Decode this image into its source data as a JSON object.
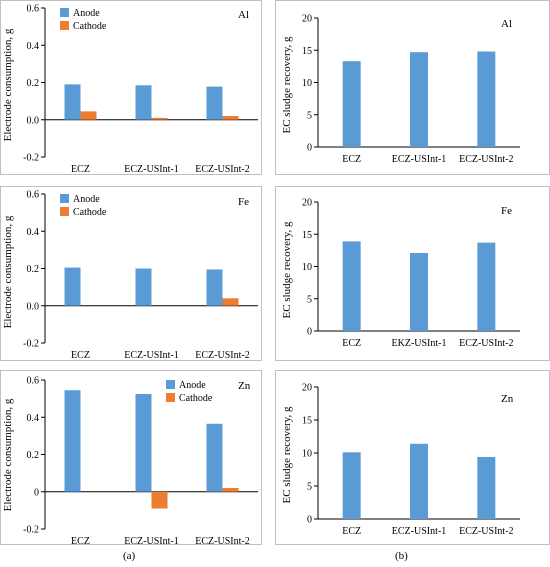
{
  "panel_labels": [
    "(a)",
    "(b)"
  ],
  "colors": {
    "anode": "#5B9BD5",
    "cathode": "#ED7D31",
    "axis": "#000000",
    "frame": "#bfbfbf"
  },
  "chart_data": [
    {
      "type": "bar",
      "metal": "Al",
      "ylabel": "Electrode consumption, g",
      "categories": [
        "ECZ",
        "ECZ-USInt-1",
        "ECZ-USInt-2"
      ],
      "ylim": [
        -0.2,
        0.6
      ],
      "ticks": [
        -0.2,
        0.0,
        0.2,
        0.4,
        0.6
      ],
      "tick_labels": [
        "-0.2",
        "0.0",
        "0.2",
        "0.4",
        "0.6"
      ],
      "legend": "top-left",
      "series": [
        {
          "name": "Anode",
          "color": "#5B9BD5",
          "values": [
            0.19,
            0.185,
            0.178
          ]
        },
        {
          "name": "Cathode",
          "color": "#ED7D31",
          "values": [
            0.045,
            0.01,
            0.02
          ]
        }
      ]
    },
    {
      "type": "bar",
      "metal": "Al",
      "ylabel": "EC sludge recovery, g",
      "categories": [
        "ECZ",
        "ECZ-USInt-1",
        "ECZ-USInt-2"
      ],
      "ylim": [
        0,
        20
      ],
      "ticks": [
        0,
        5,
        10,
        15,
        20
      ],
      "tick_labels": [
        "0",
        "5",
        "10",
        "15",
        "20"
      ],
      "series": [
        {
          "color": "#5B9BD5",
          "values": [
            13.3,
            14.7,
            14.8
          ]
        }
      ]
    },
    {
      "type": "bar",
      "metal": "Fe",
      "ylabel": "Electrode consumption, g",
      "categories": [
        "ECZ",
        "ECZ-USInt-1",
        "ECZ-USInt-2"
      ],
      "ylim": [
        -0.2,
        0.6
      ],
      "ticks": [
        -0.2,
        0.0,
        0.2,
        0.4,
        0.6
      ],
      "tick_labels": [
        "-0.2",
        "0.0",
        "0.2",
        "0.4",
        "0.6"
      ],
      "legend": "top-left",
      "series": [
        {
          "name": "Anode",
          "color": "#5B9BD5",
          "values": [
            0.205,
            0.2,
            0.195
          ]
        },
        {
          "name": "Cathode",
          "color": "#ED7D31",
          "values": [
            0.0,
            0.0,
            0.04
          ]
        }
      ]
    },
    {
      "type": "bar",
      "metal": "Fe",
      "ylabel": "EC sludge recovery, g",
      "categories": [
        "ECZ",
        "EKZ-USInt-1",
        "ECZ-USInt-2"
      ],
      "ylim": [
        0,
        20
      ],
      "ticks": [
        0,
        5,
        10,
        15,
        20
      ],
      "tick_labels": [
        "0",
        "5",
        "10",
        "15",
        "20"
      ],
      "series": [
        {
          "color": "#5B9BD5",
          "values": [
            13.9,
            12.1,
            13.7
          ]
        }
      ]
    },
    {
      "type": "bar",
      "metal": "Zn",
      "ylabel": "Electrode consumption, g",
      "categories": [
        "ECZ",
        "ECZ-USInt-1",
        "ECZ-USInt-2"
      ],
      "ylim": [
        -0.2,
        0.6
      ],
      "ticks": [
        -0.2,
        0.0,
        0.2,
        0.4,
        0.6
      ],
      "tick_labels": [
        "-0.2",
        "0",
        "0.2",
        "0.4",
        "0.6"
      ],
      "legend": "top-center",
      "series": [
        {
          "name": "Anode",
          "color": "#5B9BD5",
          "values": [
            0.545,
            0.525,
            0.365
          ]
        },
        {
          "name": "Cathode",
          "color": "#ED7D31",
          "values": [
            0.0,
            -0.09,
            0.02
          ]
        }
      ]
    },
    {
      "type": "bar",
      "metal": "Zn",
      "ylabel": "EC sludge recovery, g",
      "categories": [
        "ECZ",
        "ECZ-USInt-1",
        "ECZ-USInt-2"
      ],
      "ylim": [
        0,
        20
      ],
      "ticks": [
        0,
        5,
        10,
        15,
        20
      ],
      "tick_labels": [
        "0",
        "5",
        "10",
        "15",
        "20"
      ],
      "series": [
        {
          "color": "#5B9BD5",
          "values": [
            10.1,
            11.4,
            9.4
          ]
        }
      ]
    }
  ]
}
